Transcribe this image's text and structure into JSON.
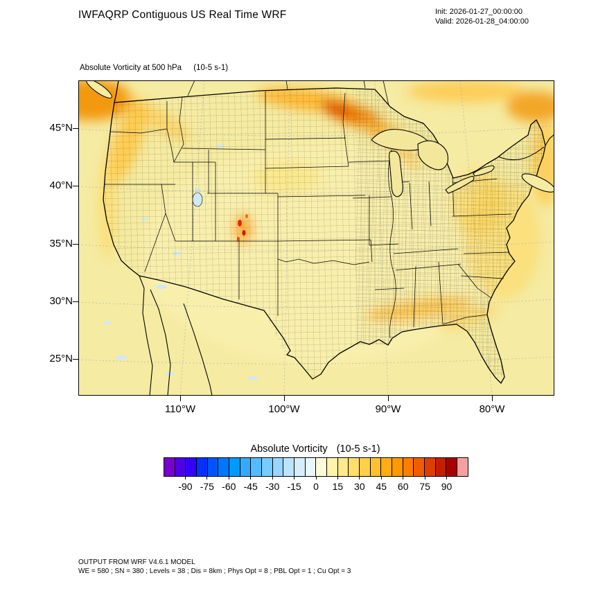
{
  "header": {
    "title": "IWFAQRP Contiguous US Real Time WRF",
    "init_label": "Init: 2026-01-27_00:00:00",
    "valid_label": "Valid: 2026-01-28_04:00:00"
  },
  "map": {
    "subtitle": "Absolute Vorticity at 500 hPa",
    "subtitle_units": "(10-5 s-1)",
    "lat_ticks": [
      "45°N",
      "40°N",
      "35°N",
      "30°N",
      "25°N"
    ],
    "lon_ticks": [
      "110°W",
      "100°W",
      "90°W",
      "80°W"
    ]
  },
  "chart_data": {
    "type": "heatmap",
    "title": "Absolute Vorticity at 500 hPa",
    "units": "10-5 s-1",
    "region": "Contiguous US (WRF real-time domain, Lambert projection with county and state boundaries)",
    "lat_ticks_deg_n": [
      45,
      40,
      35,
      30,
      25
    ],
    "lon_ticks_deg_w": [
      110,
      100,
      90,
      80
    ],
    "colorbar": {
      "title": "Absolute Vorticity",
      "units": "(10-5 s-1)",
      "min": -105,
      "max": 105,
      "cell_interval": 7.5,
      "tick_labels": [
        "-90",
        "-75",
        "-60",
        "-45",
        "-30",
        "-15",
        "0",
        "15",
        "30",
        "45",
        "60",
        "75",
        "90"
      ],
      "colors": [
        "#7A00CC",
        "#5000E6",
        "#3300FF",
        "#0033FF",
        "#0055FF",
        "#0077FF",
        "#0099FF",
        "#33AAFF",
        "#55BBFF",
        "#77CCFF",
        "#99D6FF",
        "#BBE4FF",
        "#D5EEFA",
        "#EAF6FD",
        "#FFFBD8",
        "#FFF3AE",
        "#FFE98C",
        "#FFDE6A",
        "#FFD04A",
        "#FFC02E",
        "#FFAD14",
        "#FF9900",
        "#FF7D00",
        "#F25C00",
        "#DE3D00",
        "#C41E00",
        "#A80000",
        "#F4A0A0"
      ]
    },
    "field_summary": [
      {
        "region": "Background over most of CONUS",
        "approx_value": 10
      },
      {
        "region": "Pacific Northwest coastal streaks",
        "approx_value": 30
      },
      {
        "region": "Northern Plains jet streak (Montana-Dakotas-Minnesota arc)",
        "approx_value": 60
      },
      {
        "region": "Colorado Rockies lee maxima (small cores)",
        "approx_value": 90
      },
      {
        "region": "Eastern US / Appalachian wash",
        "approx_value": 25
      },
      {
        "region": "Gulf Coast band (Louisiana to Georgia)",
        "approx_value": 30
      },
      {
        "region": "Upper-right corner band (eastern Canada)",
        "approx_value": 40
      },
      {
        "region": "Scattered negative patches over West and Mexico",
        "approx_value": -15
      }
    ]
  },
  "footer": {
    "line1": "OUTPUT FROM WRF V4.6.1 MODEL",
    "line2": "WE = 580 ; SN = 380 ; Levels = 38 ; Dis = 8km ; Phys Opt = 8 ; PBL Opt = 1 ; Cu Opt = 3"
  }
}
